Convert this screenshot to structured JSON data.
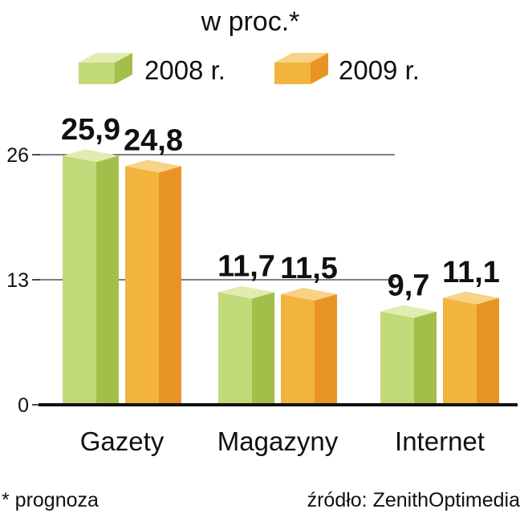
{
  "chart_data": {
    "type": "bar",
    "title": "w proc.*",
    "categories": [
      "Gazety",
      "Magazyny",
      "Internet"
    ],
    "series": [
      {
        "name": "2008 r.",
        "values": [
          25.9,
          11.7,
          9.7
        ],
        "labels": [
          "25,9",
          "11,7",
          "9,7"
        ]
      },
      {
        "name": "2009 r.",
        "values": [
          24.8,
          11.5,
          11.1
        ],
        "labels": [
          "24,8",
          "11,5",
          "11,1"
        ]
      }
    ],
    "yticks": [
      0,
      13,
      26
    ],
    "ytick_labels": [
      "0",
      "13",
      "26"
    ],
    "ylim": [
      0,
      26
    ],
    "grid": true,
    "legend_position": "top",
    "colors": {
      "s2008_front": "#c2d97a",
      "s2008_side": "#a3bf4a",
      "s2008_top": "#e1ecb3",
      "s2009_front": "#f2b43e",
      "s2009_side": "#e89424",
      "s2009_top": "#f8d286",
      "axis": "#111111"
    }
  },
  "footer": {
    "note": "* prognoza",
    "source": "źródło: ZenithOptimedia"
  }
}
